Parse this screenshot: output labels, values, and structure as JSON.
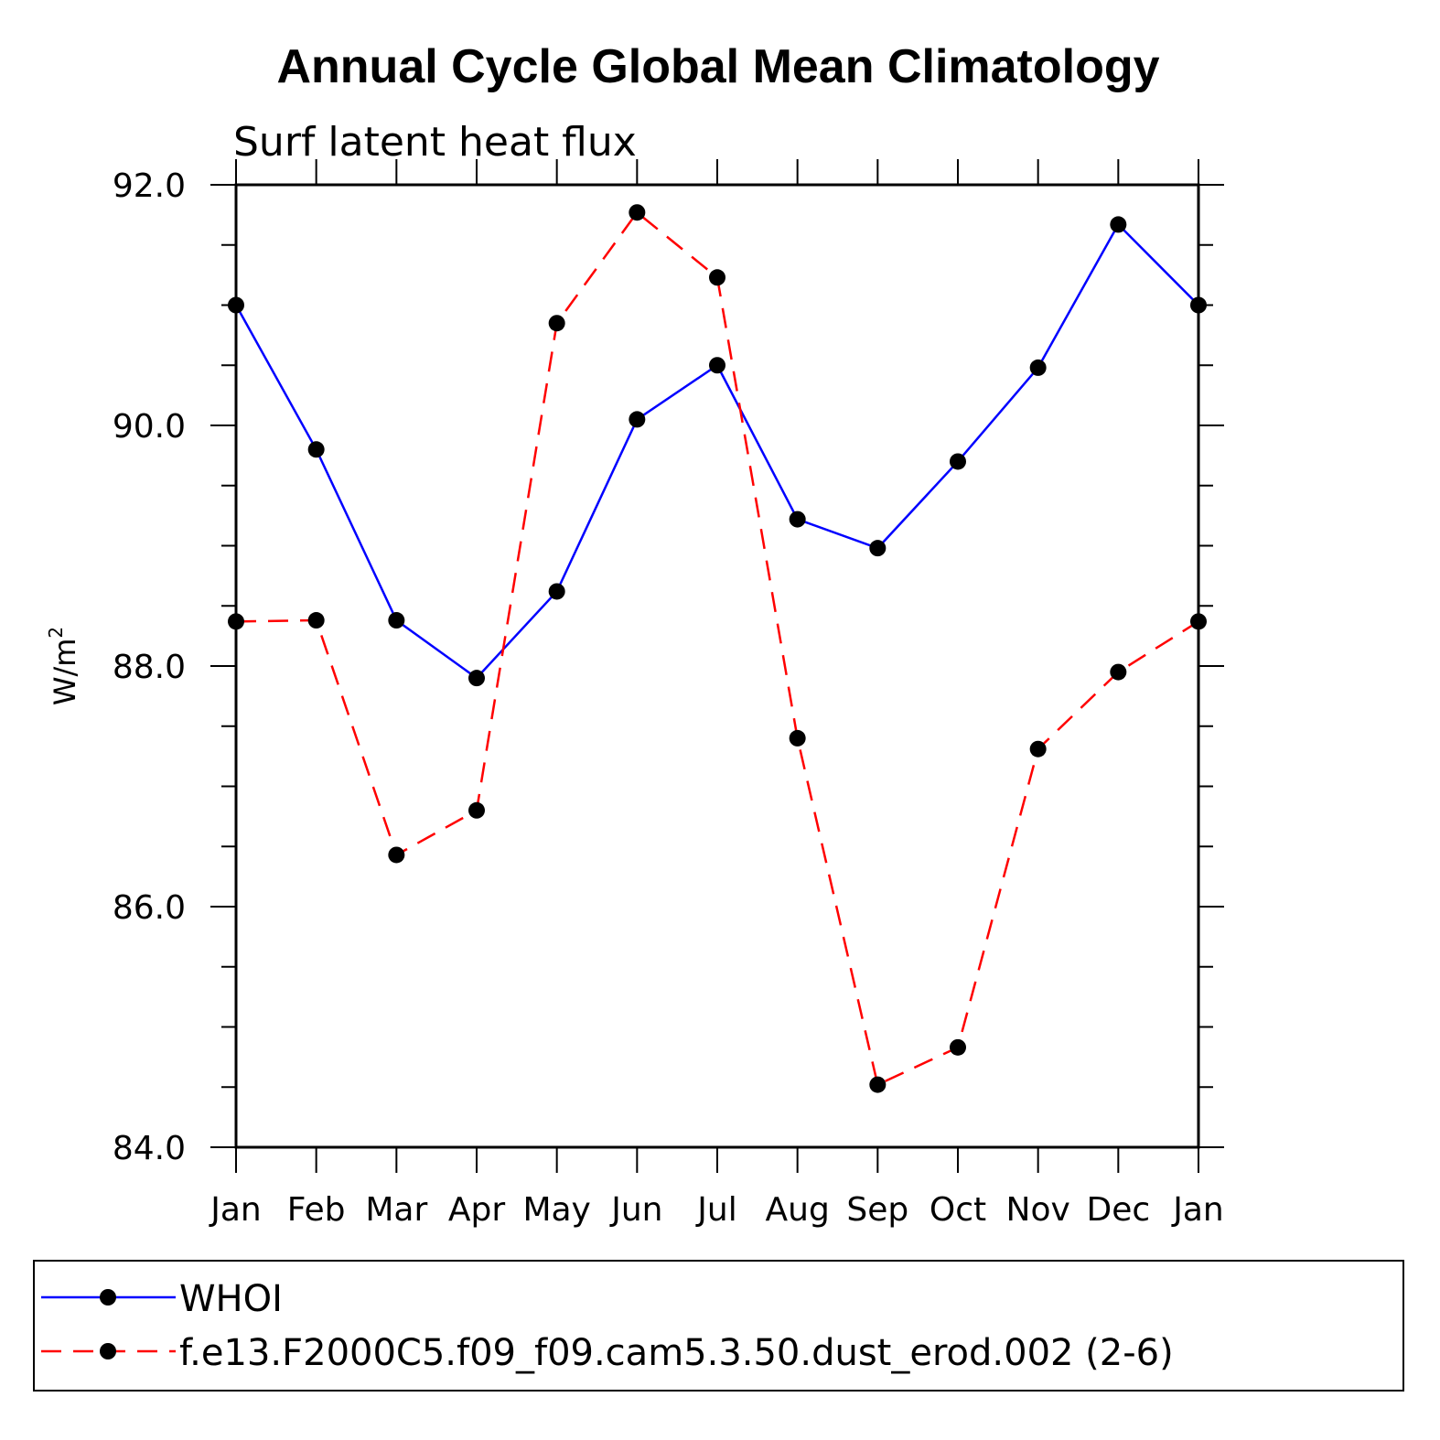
{
  "chart_data": {
    "type": "line",
    "title": "Annual Cycle Global Mean Climatology",
    "subtitle": "Surf latent heat flux",
    "ylabel": "W/m",
    "ylabel_superscript": "2",
    "xlabel": "",
    "categories": [
      "Jan",
      "Feb",
      "Mar",
      "Apr",
      "May",
      "Jun",
      "Jul",
      "Aug",
      "Sep",
      "Oct",
      "Nov",
      "Dec",
      "Jan"
    ],
    "ylim": [
      84.0,
      92.0
    ],
    "yticks": [
      "84.0",
      "86.0",
      "88.0",
      "90.0",
      "92.0"
    ],
    "grid": false,
    "legend_position": "bottom",
    "series": [
      {
        "name": "WHOI",
        "color": "#0000ff",
        "dash": "solid",
        "marker": "filled-circle",
        "values": [
          91.0,
          89.8,
          88.38,
          87.9,
          88.62,
          90.05,
          90.5,
          89.22,
          88.98,
          89.7,
          90.48,
          91.67,
          91.0
        ]
      },
      {
        "name": "f.e13.F2000C5.f09_f09.cam5.3.50.dust_erod.002 (2-6)",
        "color": "#ff0000",
        "dash": "dashed",
        "marker": "filled-circle",
        "values": [
          88.37,
          88.38,
          86.43,
          86.8,
          90.85,
          91.77,
          91.23,
          87.4,
          84.52,
          84.83,
          87.31,
          87.95,
          88.37
        ]
      }
    ]
  }
}
